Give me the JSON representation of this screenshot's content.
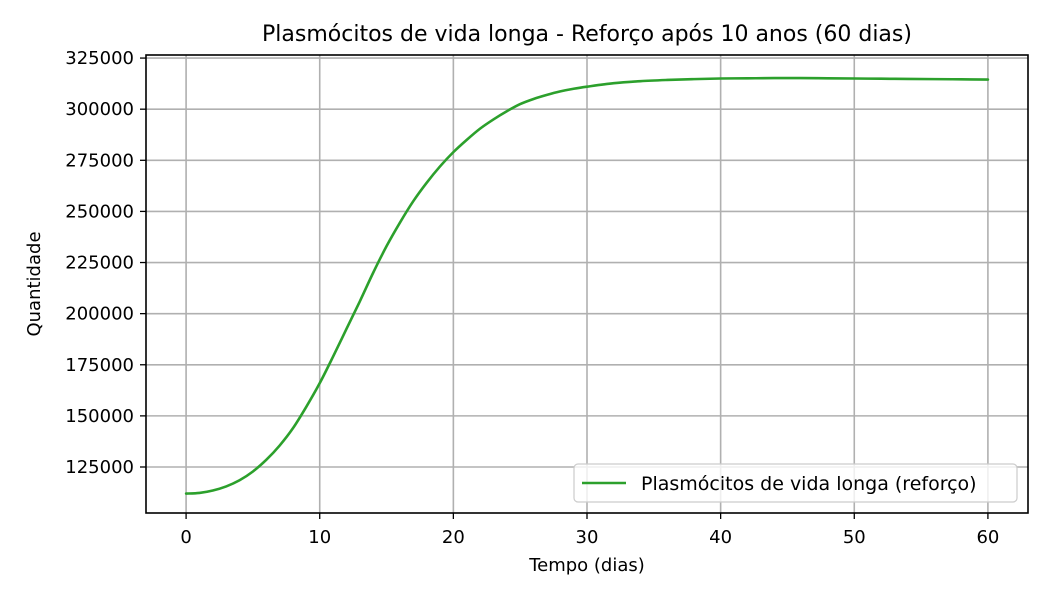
{
  "chart_data": {
    "type": "line",
    "title": "Plasmócitos de vida longa - Reforço após 10 anos (60 dias)",
    "xlabel": "Tempo (dias)",
    "ylabel": "Quantidade",
    "xlim": [
      -3,
      63
    ],
    "ylim": [
      102500,
      326500
    ],
    "grid": true,
    "legend_position": "lower-right",
    "xticks": [
      0,
      10,
      20,
      30,
      40,
      50,
      60
    ],
    "xtick_labels": [
      "0",
      "10",
      "20",
      "30",
      "40",
      "50",
      "60"
    ],
    "yticks": [
      125000,
      150000,
      175000,
      200000,
      225000,
      250000,
      275000,
      300000,
      325000
    ],
    "ytick_labels": [
      "125000",
      "150000",
      "175000",
      "200000",
      "225000",
      "250000",
      "275000",
      "300000",
      "325000"
    ],
    "series": [
      {
        "name": "Plasmócitos de vida longa (reforço)",
        "color": "#2ca02c",
        "x": [
          0,
          1,
          2,
          3,
          4,
          5,
          6,
          7,
          8,
          9,
          10,
          11,
          12,
          13,
          14,
          15,
          16,
          17,
          18,
          19,
          20,
          21,
          22,
          23,
          24,
          25,
          26,
          27,
          28,
          29,
          30,
          32,
          34,
          36,
          38,
          40,
          42,
          44,
          46,
          48,
          50,
          52,
          54,
          56,
          58,
          60
        ],
        "y": [
          112000,
          112300,
          113500,
          115500,
          118500,
          122800,
          128500,
          135500,
          144000,
          154500,
          166000,
          179000,
          192500,
          206000,
          220000,
          233000,
          244500,
          255000,
          264000,
          272000,
          279000,
          285000,
          290500,
          295000,
          299000,
          302500,
          305000,
          307000,
          308700,
          310000,
          311000,
          312700,
          313700,
          314300,
          314700,
          315000,
          315100,
          315200,
          315200,
          315100,
          315000,
          314900,
          314800,
          314700,
          314600,
          314500
        ]
      }
    ]
  }
}
